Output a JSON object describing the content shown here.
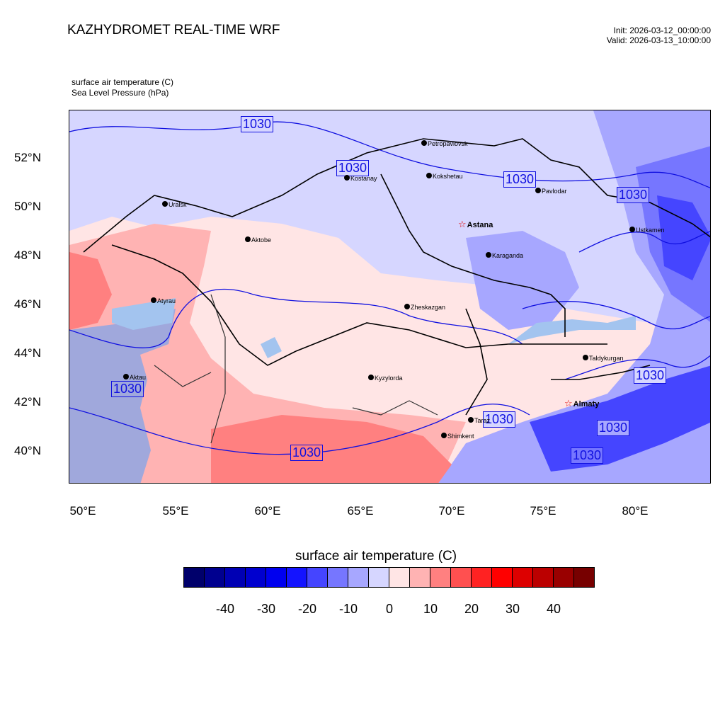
{
  "header": {
    "title": "KAZHYDROMET REAL-TIME WRF",
    "init": "Init: 2026-03-12_00:00:00",
    "valid": "Valid: 2026-03-13_10:00:00",
    "subtitle_temp": "surface air temperature   (C)",
    "subtitle_slp": "Sea Level Pressure   (hPa)"
  },
  "map": {
    "lat_labels": [
      "52°N",
      "50°N",
      "48°N",
      "46°N",
      "44°N",
      "42°N",
      "40°N"
    ],
    "lon_labels": [
      "50°E",
      "55°E",
      "60°E",
      "65°E",
      "70°E",
      "75°E",
      "80°E"
    ],
    "cities": [
      {
        "name": "Petropavlovsk"
      },
      {
        "name": "Kostanay"
      },
      {
        "name": "Kokshetau"
      },
      {
        "name": "Pavlodar"
      },
      {
        "name": "Uralsk"
      },
      {
        "name": "Aktobe"
      },
      {
        "name": "Astana"
      },
      {
        "name": "Ustkamen"
      },
      {
        "name": "Karaganda"
      },
      {
        "name": "Atyrau"
      },
      {
        "name": "Zheskazgan"
      },
      {
        "name": "Taldykurgan"
      },
      {
        "name": "Kyzylorda"
      },
      {
        "name": "Aktau"
      },
      {
        "name": "Almaty"
      },
      {
        "name": "Taraz"
      },
      {
        "name": "Shimkent"
      }
    ],
    "isobar_label": "1030",
    "colors": {
      "caspian": "#a0a8dc",
      "aral": "#a3c4ef",
      "isobar": "#1010e0",
      "border": "#000000",
      "capital_star": "#e00000"
    }
  },
  "colorbar": {
    "title": "surface air temperature  (C)",
    "colors": [
      "#00006b",
      "#00008f",
      "#0000b4",
      "#0000cf",
      "#0000ef",
      "#1414ff",
      "#4545ff",
      "#7676ff",
      "#a7a7ff",
      "#d6d6ff",
      "#ffe5e5",
      "#ffb3b3",
      "#ff8080",
      "#ff5050",
      "#ff2222",
      "#ff0000",
      "#dd0000",
      "#bb0000",
      "#990000",
      "#770000"
    ],
    "labels": [
      "-40",
      "-30",
      "-20",
      "-10",
      "0",
      "10",
      "20",
      "30",
      "40"
    ]
  }
}
